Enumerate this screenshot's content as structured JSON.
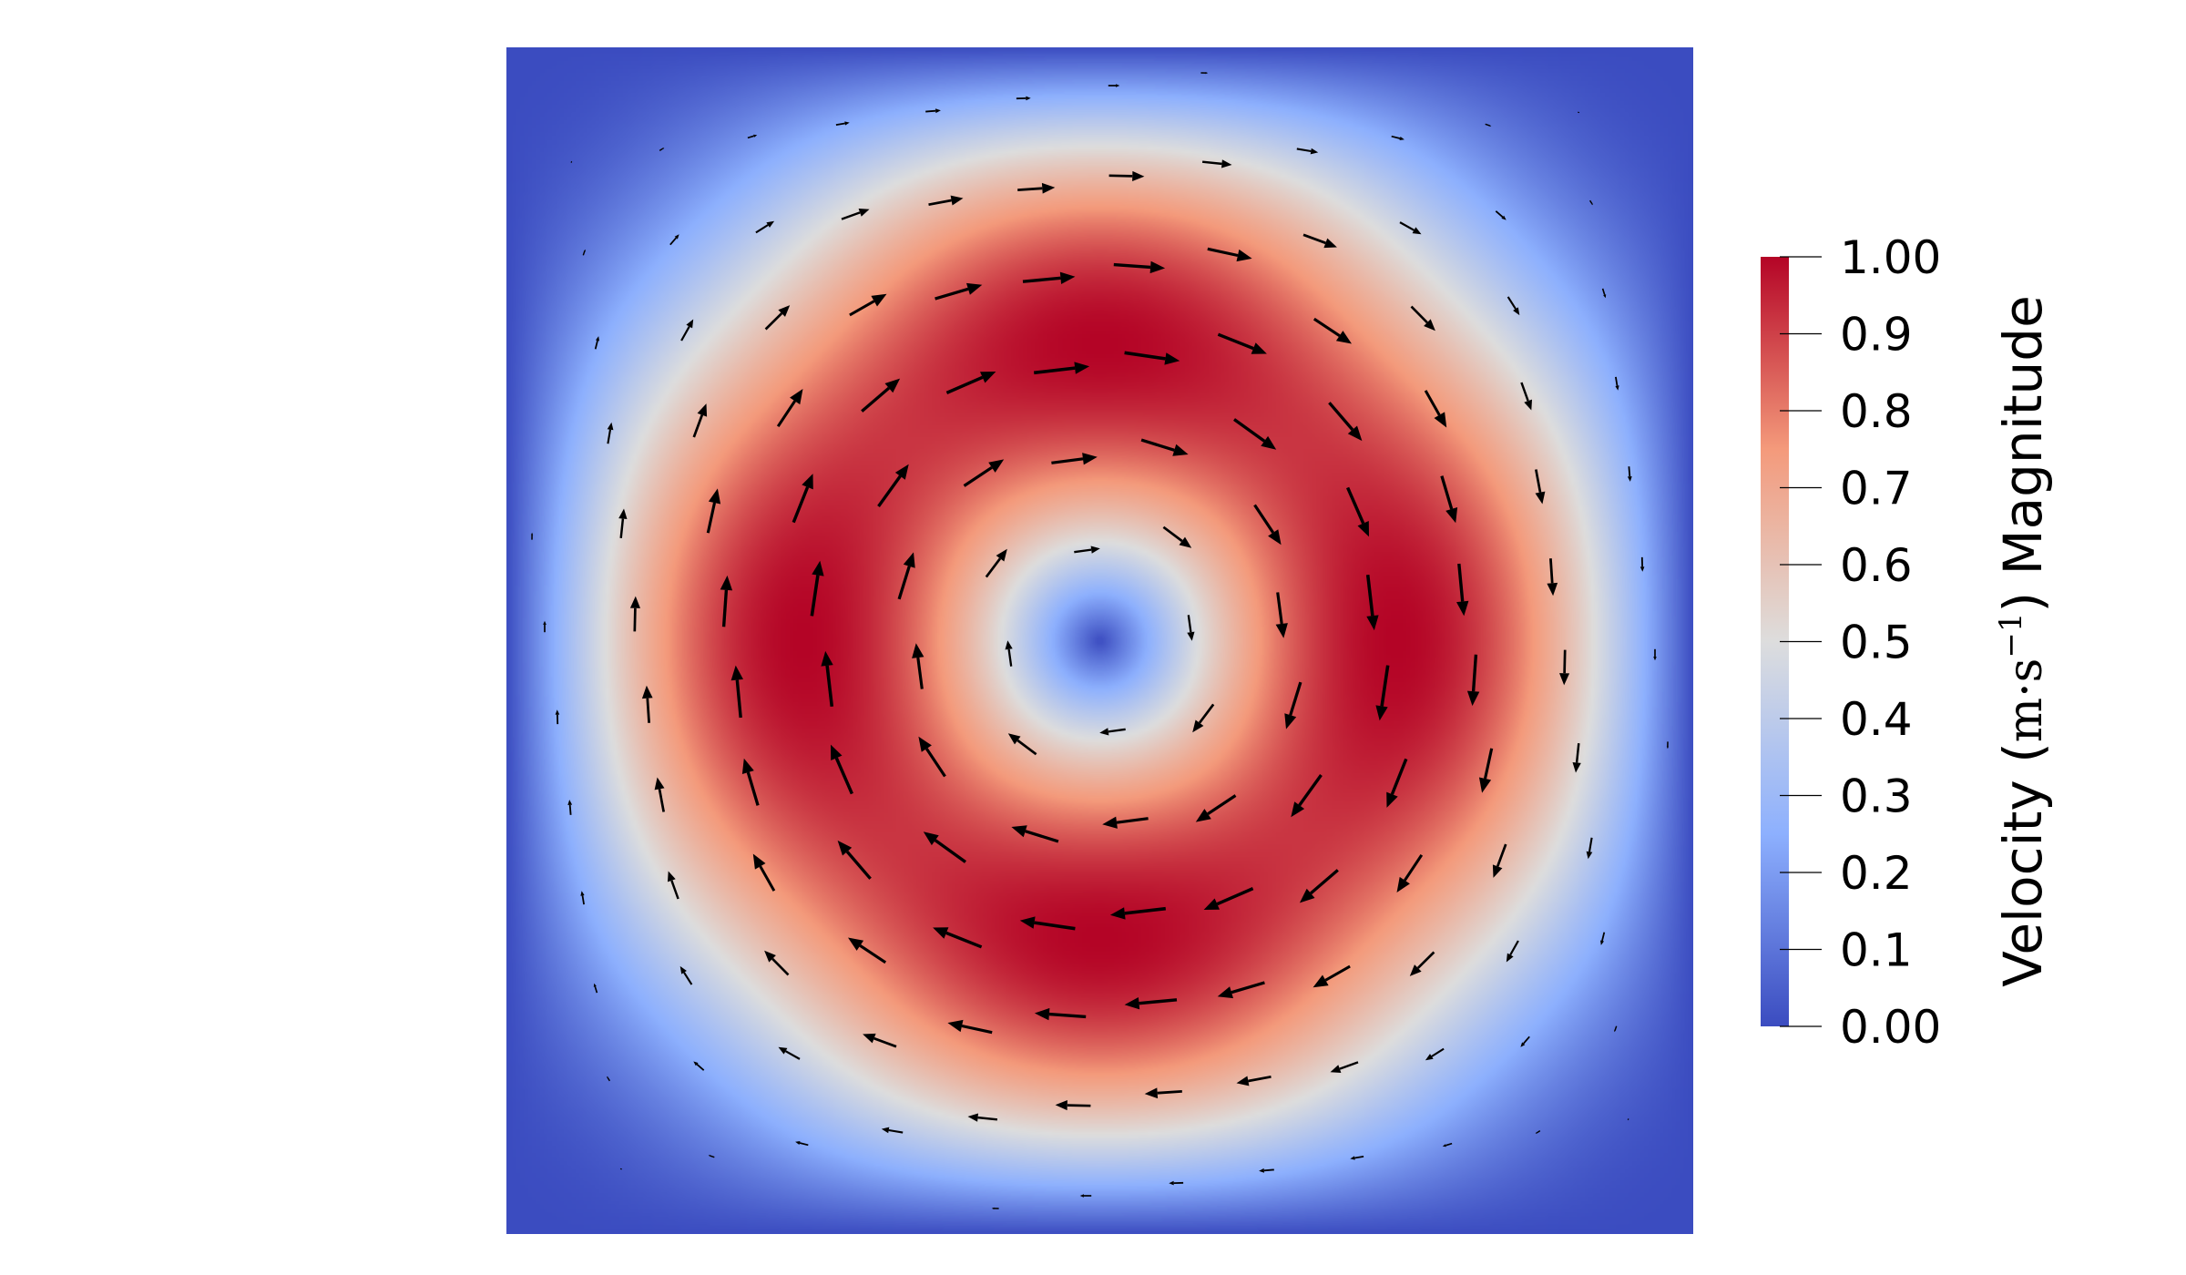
{
  "chart_data": {
    "type": "heatmap",
    "description_kind": "2D vector field glyphs over a scalar magnitude color map",
    "field": {
      "name": "Velocity",
      "x_range": [
        0,
        1
      ],
      "y_range": [
        0,
        1
      ],
      "velocity_x": "-sin(pi*x)^2 * sin(2*pi*y)",
      "velocity_y": "sin(2*pi*x) * sin(pi*y)^2",
      "max_magnitude": 1.0,
      "glyph_grid": 13,
      "glyph_rotation_deg": 8
    },
    "colormap": {
      "name": "Cool to Warm",
      "stops": [
        {
          "value": 0.0,
          "color": "#3b4cc0"
        },
        {
          "value": 0.25,
          "color": "#8db0fe"
        },
        {
          "value": 0.5,
          "color": "#dddddd"
        },
        {
          "value": 0.75,
          "color": "#f49a7b"
        },
        {
          "value": 1.0,
          "color": "#b40426"
        }
      ]
    },
    "colorbar": {
      "title_prefix": "Velocity ",
      "title_unit_open": "(",
      "title_unit_m": "m",
      "title_unit_dot": "·",
      "title_unit_s": "s",
      "title_unit_exp": "−1",
      "title_unit_close": ")",
      "title_suffix": " Magnitude",
      "range": [
        0.0,
        1.0
      ],
      "ticks": [
        "0.00",
        "0.1",
        "0.2",
        "0.3",
        "0.4",
        "0.5",
        "0.6",
        "0.7",
        "0.8",
        "0.9",
        "1.00"
      ],
      "placement": "right"
    },
    "arrow_color": "#000000"
  }
}
